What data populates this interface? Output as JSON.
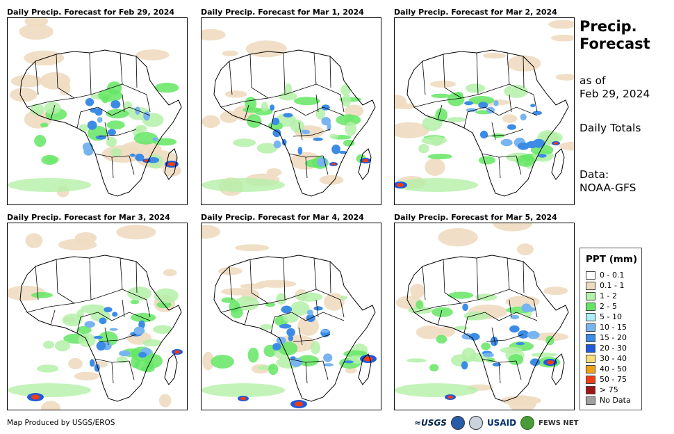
{
  "panels": [
    {
      "title": "Daily Precip. Forecast for Feb 29, 2024"
    },
    {
      "title": "Daily Precip. Forecast for Mar 1, 2024"
    },
    {
      "title": "Daily Precip. Forecast for Mar 2, 2024"
    },
    {
      "title": "Daily Precip. Forecast for Mar 3, 2024"
    },
    {
      "title": "Daily Precip. Forecast for Mar 4, 2024"
    },
    {
      "title": "Daily Precip. Forecast for Mar 5, 2024"
    }
  ],
  "side": {
    "title_line1": "Precip.",
    "title_line2": "Forecast",
    "asof_line1": "as of",
    "asof_line2": "Feb 29, 2024",
    "totals": "Daily Totals",
    "data_line1": "Data:",
    "data_line2": "NOAA-GFS"
  },
  "legend": {
    "title": "PPT (mm)",
    "items": [
      {
        "label": "0 - 0.1",
        "color": "#ffffff"
      },
      {
        "label": "0.1 - 1",
        "color": "#eedcc0"
      },
      {
        "label": "1 - 2",
        "color": "#b4f0a8"
      },
      {
        "label": "2 - 5",
        "color": "#64e664"
      },
      {
        "label": "5 - 10",
        "color": "#aaeef6"
      },
      {
        "label": "10 - 15",
        "color": "#78b4f0"
      },
      {
        "label": "15 - 20",
        "color": "#3c8ce6"
      },
      {
        "label": "20 - 30",
        "color": "#1e5adc"
      },
      {
        "label": "30 - 40",
        "color": "#fadc78"
      },
      {
        "label": "40 - 50",
        "color": "#f0a014"
      },
      {
        "label": "50 - 75",
        "color": "#f03c14"
      },
      {
        "label": "> 75",
        "color": "#a01414"
      },
      {
        "label": "No Data",
        "color": "#a0a0a0"
      }
    ]
  },
  "footer": {
    "credit": "Map Produced by USGS/EROS",
    "logo_usgs": "≈USGS",
    "logo_usaid": "USAID",
    "logo_fews": "FEWS NET"
  }
}
